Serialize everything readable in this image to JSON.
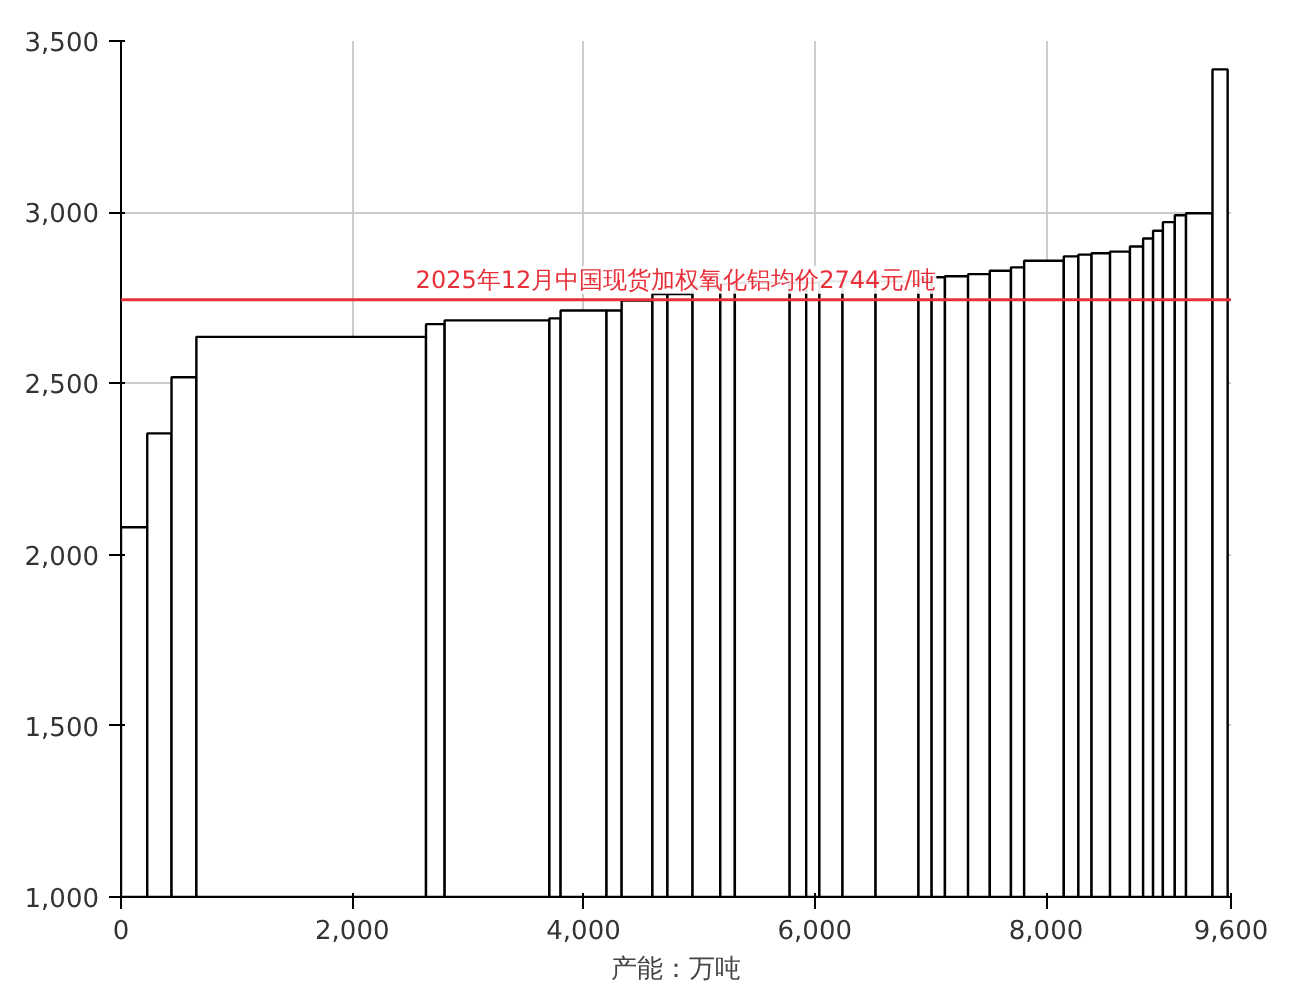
{
  "chart_data": {
    "type": "histogram",
    "xlabel": "产能：万吨",
    "bins": [
      0,
      227,
      437,
      652,
      2638,
      2799,
      3705,
      3802,
      4199,
      4330,
      4596,
      4726,
      4943,
      5183,
      5309,
      5783,
      5926,
      6040,
      6240,
      6526,
      6897,
      7011,
      7126,
      7326,
      7514,
      7697,
      7811,
      8154,
      8280,
      8394,
      8554,
      8726,
      8840,
      8926,
      9011,
      9114,
      9211,
      9440,
      9571
    ],
    "values": [
      2080,
      2354,
      2518,
      2636,
      2673,
      2684,
      2690,
      2713,
      2713,
      2742,
      2761,
      2761,
      2781,
      2790,
      2794,
      2794,
      2794,
      2798,
      2798,
      2798,
      2804,
      2810,
      2813,
      2819,
      2829,
      2839,
      2858,
      2871,
      2876,
      2880,
      2885,
      2900,
      2923,
      2946,
      2971,
      2991,
      2997,
      3417
    ],
    "color": "#ffffff",
    "xlim": [
      0,
      9600
    ],
    "ylim": [
      1000,
      3500
    ],
    "xticks": [
      0,
      {
        "value": 2000,
        "label": "2,000"
      },
      {
        "value": 4000,
        "label": "4,000"
      },
      {
        "value": 6000,
        "label": "6,000"
      },
      {
        "value": 8000,
        "label": "8,000"
      },
      {
        "value": 9600,
        "label": "9,600"
      }
    ],
    "yticks": [
      {
        "value": 1000,
        "label": "1,000"
      },
      {
        "value": 1500,
        "label": "1,500"
      },
      {
        "value": 2000,
        "label": "2,000"
      },
      {
        "value": 2500,
        "label": "2,500"
      },
      {
        "value": 3000,
        "label": "3,000"
      },
      {
        "value": 3500,
        "label": "3,500"
      }
    ],
    "ref_lines": [
      {
        "axis": "y",
        "value": 2744,
        "label": "2025年12月中国现货加权氧化铝均价2744元/吨",
        "color": "#e8303a"
      }
    ],
    "grid": true
  }
}
